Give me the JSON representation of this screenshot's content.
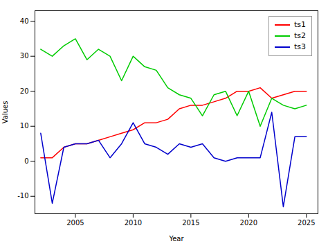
{
  "chart_data": {
    "type": "line",
    "x": [
      2002,
      2003,
      2004,
      2005,
      2006,
      2007,
      2008,
      2009,
      2010,
      2011,
      2012,
      2013,
      2014,
      2015,
      2016,
      2017,
      2018,
      2019,
      2020,
      2021,
      2022,
      2023,
      2024,
      2025
    ],
    "series": [
      {
        "name": "ts1",
        "color": "#ff0000",
        "values": [
          1,
          1,
          4,
          5,
          5,
          6,
          7,
          8,
          9,
          11,
          11,
          12,
          15,
          16,
          16,
          17,
          18,
          20,
          20,
          21,
          18,
          19,
          20,
          20
        ]
      },
      {
        "name": "ts2",
        "color": "#00cc00",
        "values": [
          32,
          30,
          33,
          35,
          29,
          32,
          30,
          23,
          30,
          27,
          26,
          21,
          19,
          18,
          13,
          19,
          20,
          13,
          20,
          10,
          18,
          16,
          15,
          16
        ]
      },
      {
        "name": "ts3",
        "color": "#0000cc",
        "values": [
          8,
          -12,
          4,
          5,
          5,
          6,
          1,
          5,
          11,
          5,
          4,
          2,
          5,
          4,
          5,
          1,
          0,
          1,
          1,
          1,
          14,
          -13,
          7,
          7
        ]
      }
    ],
    "xlabel": "Year",
    "ylabel": "Values",
    "xlim": [
      2001.5,
      2026
    ],
    "ylim": [
      -15,
      43
    ],
    "xticks": [
      2005,
      2010,
      2015,
      2020,
      2025
    ],
    "yticks": [
      -10,
      0,
      10,
      20,
      30,
      40
    ],
    "grid": false,
    "legend": "upper right"
  }
}
